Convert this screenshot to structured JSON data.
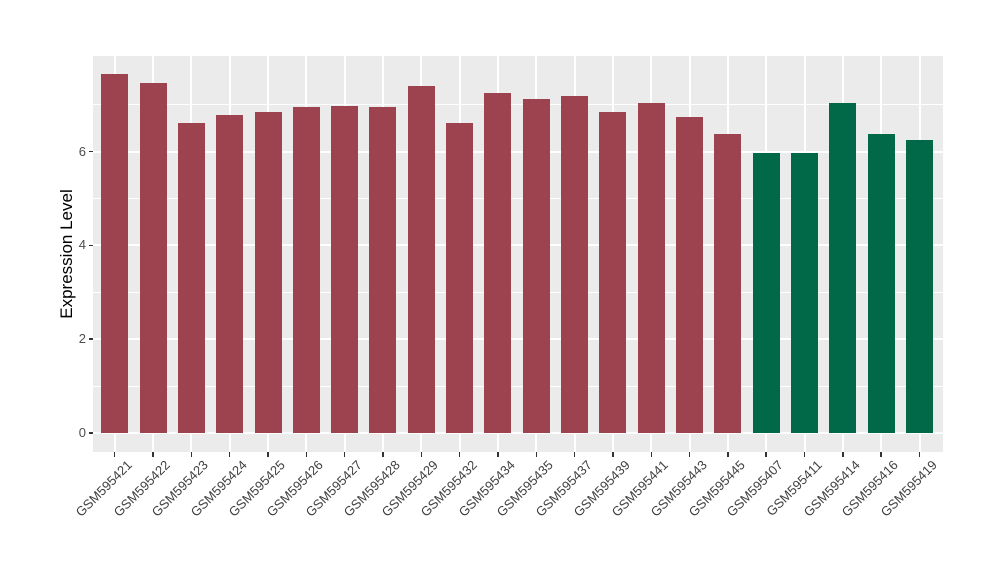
{
  "figure": {
    "background": "#FFFFFF",
    "panel_background": "#EBEBEB",
    "grid_color": "#FFFFFF",
    "tick_mark_color": "#333333",
    "axis_text_color": "#4D4D4D",
    "axis_title_color": "#000000"
  },
  "chart_data": {
    "type": "bar",
    "title": "",
    "xlabel": "",
    "ylabel": "Expression Level",
    "ylim": [
      -0.4,
      8.04
    ],
    "yticks": [
      0,
      2,
      4,
      6
    ],
    "yticks_minor": [
      1,
      3,
      5,
      7
    ],
    "grid": "white major + minor horizontal lines, white vertical line per category, drawn under bars",
    "legend_position": "none",
    "categories": [
      "GSM595421",
      "GSM595422",
      "GSM595423",
      "GSM595424",
      "GSM595425",
      "GSM595426",
      "GSM595427",
      "GSM595428",
      "GSM595429",
      "GSM595432",
      "GSM595434",
      "GSM595435",
      "GSM595437",
      "GSM595439",
      "GSM595441",
      "GSM595443",
      "GSM595445",
      "GSM595407",
      "GSM595411",
      "GSM595414",
      "GSM595416",
      "GSM595419"
    ],
    "values": [
      7.65,
      7.47,
      6.61,
      6.77,
      6.85,
      6.95,
      6.97,
      6.95,
      7.4,
      6.62,
      7.24,
      7.13,
      7.19,
      6.85,
      7.03,
      6.73,
      6.38,
      5.97,
      5.97,
      7.03,
      6.37,
      6.25
    ],
    "bar_colors": [
      "#9D4350",
      "#9D4350",
      "#9D4350",
      "#9D4350",
      "#9D4350",
      "#9D4350",
      "#9D4350",
      "#9D4350",
      "#9D4350",
      "#9D4350",
      "#9D4350",
      "#9D4350",
      "#9D4350",
      "#9D4350",
      "#9D4350",
      "#9D4350",
      "#9D4350",
      "#016948",
      "#016948",
      "#016948",
      "#016948",
      "#016948"
    ],
    "palette": {
      "dark_red": "#9D4350",
      "dark_green": "#016948"
    }
  }
}
